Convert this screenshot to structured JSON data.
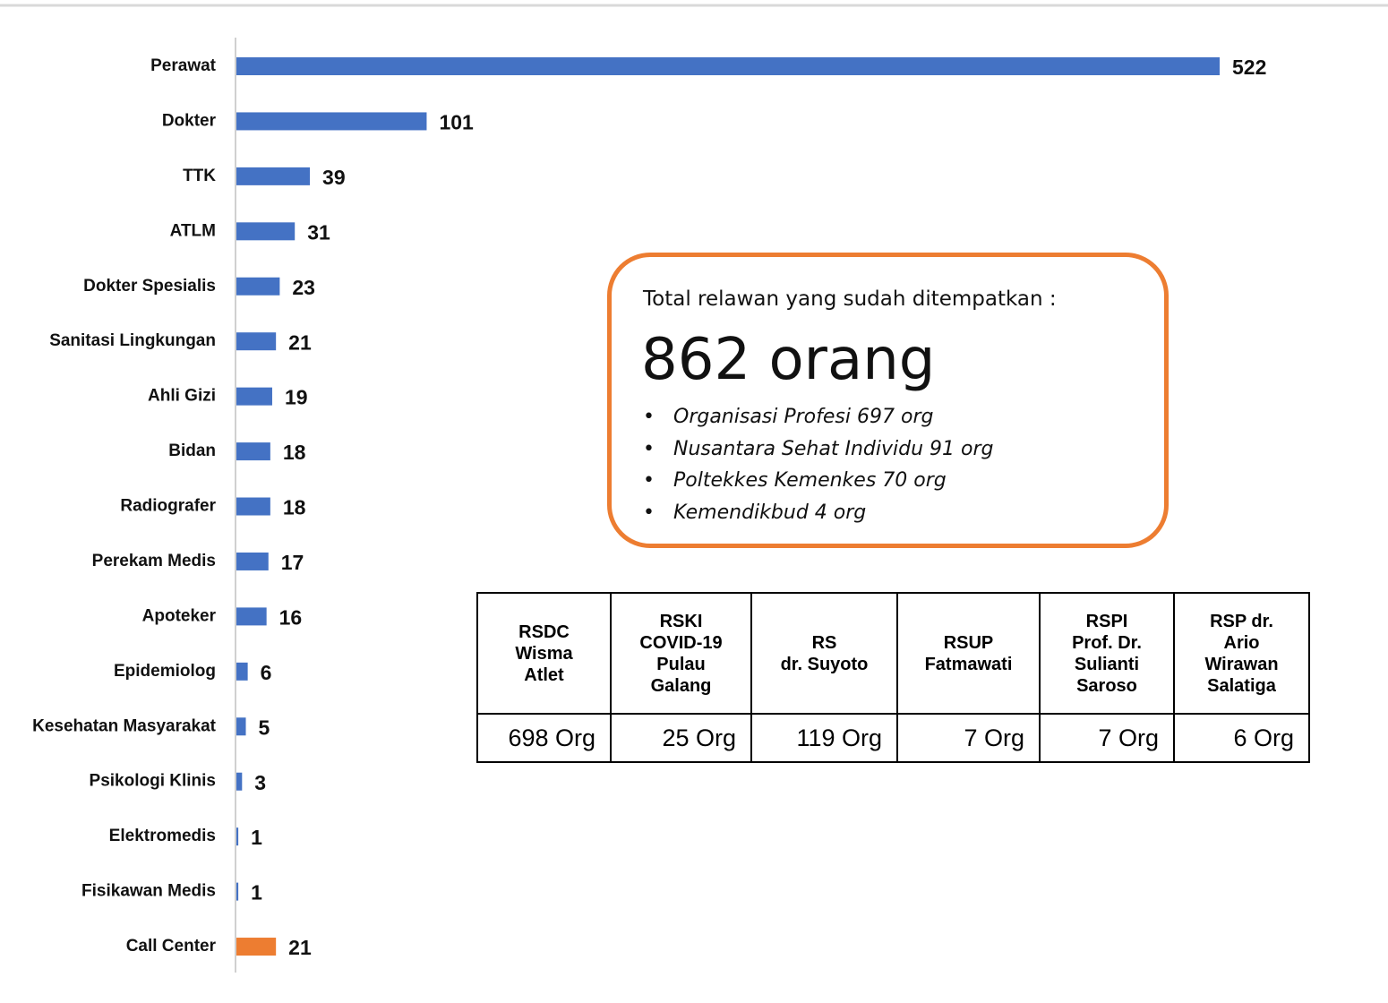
{
  "chart_data": {
    "type": "bar",
    "orientation": "horizontal",
    "categories": [
      "Perawat",
      "Dokter",
      "TTK",
      "ATLM",
      "Dokter Spesialis",
      "Sanitasi Lingkungan",
      "Ahli Gizi",
      "Bidan",
      "Radiografer",
      "Perekam Medis",
      "Apoteker",
      "Epidemiolog",
      "Kesehatan Masyarakat",
      "Psikologi Klinis",
      "Elektromedis",
      "Fisikawan Medis",
      "Call Center"
    ],
    "values": [
      522,
      101,
      39,
      31,
      23,
      21,
      19,
      18,
      18,
      17,
      16,
      6,
      5,
      3,
      1,
      1,
      21
    ],
    "colors": [
      "#4472c4",
      "#4472c4",
      "#4472c4",
      "#4472c4",
      "#4472c4",
      "#4472c4",
      "#4472c4",
      "#4472c4",
      "#4472c4",
      "#4472c4",
      "#4472c4",
      "#4472c4",
      "#4472c4",
      "#4472c4",
      "#4472c4",
      "#4472c4",
      "#ed7d31"
    ],
    "xlim": [
      0,
      522
    ]
  },
  "callout": {
    "title": "Total relawan yang sudah ditempatkan :",
    "total": "862 orang",
    "items": [
      "Organisasi Profesi 697 org",
      "Nusantara Sehat Individu 91 org",
      "Poltekkes Kemenkes 70 org",
      "Kemendikbud 4 org"
    ]
  },
  "table": {
    "headers": [
      "RSDC\nWisma\nAtlet",
      "RSKI\nCOVID-19\nPulau\nGalang",
      "RS\ndr. Suyoto",
      "RSUP\nFatmawati",
      "RSPI\nProf. Dr.\nSulianti\nSaroso",
      "RSP dr.\nArio\nWirawan\nSalatiga"
    ],
    "rows": [
      [
        "698 Org",
        "25 Org",
        "119 Org",
        "7 Org",
        "7 Org",
        "6 Org"
      ]
    ]
  }
}
